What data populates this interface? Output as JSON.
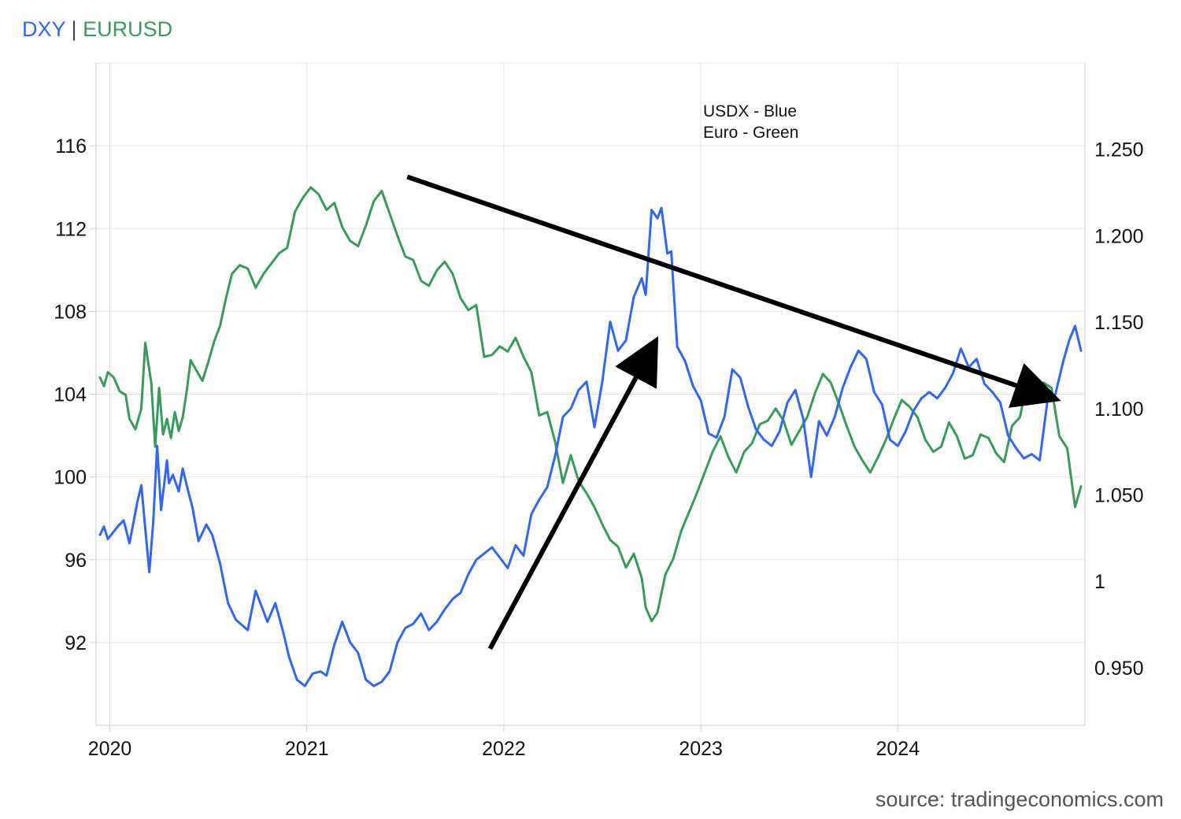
{
  "chart_data": {
    "type": "line",
    "title_parts": [
      {
        "text": "DXY",
        "color": "#3366ee"
      },
      {
        "text": " | ",
        "color": "#444444"
      },
      {
        "text": "EURUSD",
        "color": "#3a9a5b"
      }
    ],
    "source": "source: tradingeconomics.com",
    "grid": true,
    "x_ticks": [
      "2020",
      "2021",
      "2022",
      "2023",
      "2024"
    ],
    "x_range": [
      2019.93,
      2024.95
    ],
    "y_left": {
      "ticks": [
        "116",
        "112",
        "108",
        "104",
        "100",
        "96",
        "92"
      ],
      "range": [
        88,
        120
      ]
    },
    "y_right": {
      "ticks": [
        "1.250",
        "1.200",
        "1.150",
        "1.100",
        "1.050",
        "1",
        "0.950"
      ],
      "range": [
        0.9167,
        1.3
      ]
    },
    "annotation": [
      "USDX - Blue",
      "Euro - Green"
    ],
    "arrows": [
      {
        "from": [
          2021.51,
          114.5
        ],
        "to": [
          2024.76,
          103.9
        ]
      },
      {
        "from": [
          2021.93,
          91.7
        ],
        "to": [
          2022.75,
          106.2
        ]
      }
    ],
    "series": [
      {
        "color": "#3366ee",
        "x": [
          2019.95,
          2019.97,
          2019.99,
          2020.04,
          2020.07,
          2020.1,
          2020.14,
          2020.16,
          2020.2,
          2020.22,
          2020.24,
          2020.26,
          2020.29,
          2020.3,
          2020.32,
          2020.35,
          2020.37,
          2020.39,
          2020.42,
          2020.45,
          2020.49,
          2020.52,
          2020.56,
          2020.6,
          2020.64,
          2020.7,
          2020.74,
          2020.8,
          2020.84,
          2020.88,
          2020.91,
          2020.95,
          2020.99,
          2021.03,
          2021.07,
          2021.1,
          2021.14,
          2021.18,
          2021.22,
          2021.26,
          2021.3,
          2021.34,
          2021.38,
          2021.42,
          2021.46,
          2021.5,
          2021.54,
          2021.58,
          2021.62,
          2021.66,
          2021.7,
          2021.74,
          2021.78,
          2021.82,
          2021.86,
          2021.9,
          2021.94,
          2021.98,
          2022.02,
          2022.06,
          2022.1,
          2022.14,
          2022.18,
          2022.22,
          2022.26,
          2022.3,
          2022.34,
          2022.38,
          2022.42,
          2022.46,
          2022.5,
          2022.54,
          2022.58,
          2022.62,
          2022.66,
          2022.7,
          2022.72,
          2022.75,
          2022.78,
          2022.8,
          2022.83,
          2022.85,
          2022.88,
          2022.92,
          2022.96,
          2023.0,
          2023.04,
          2023.08,
          2023.12,
          2023.16,
          2023.2,
          2023.24,
          2023.28,
          2023.32,
          2023.36,
          2023.4,
          2023.44,
          2023.48,
          2023.52,
          2023.56,
          2023.6,
          2023.64,
          2023.68,
          2023.72,
          2023.76,
          2023.8,
          2023.84,
          2023.88,
          2023.92,
          2023.96,
          2024.0,
          2024.04,
          2024.08,
          2024.12,
          2024.16,
          2024.2,
          2024.24,
          2024.28,
          2024.32,
          2024.36,
          2024.4,
          2024.44,
          2024.48,
          2024.52,
          2024.56,
          2024.6,
          2024.64,
          2024.68,
          2024.72,
          2024.76,
          2024.8,
          2024.84,
          2024.87,
          2024.9,
          2024.93
        ],
        "values": [
          97.2,
          97.6,
          97.0,
          97.6,
          97.9,
          96.8,
          98.8,
          99.6,
          95.4,
          97.8,
          101.5,
          98.4,
          100.8,
          99.7,
          100.1,
          99.3,
          100.4,
          99.6,
          98.5,
          96.9,
          97.7,
          97.2,
          95.8,
          93.9,
          93.1,
          92.6,
          94.5,
          93.0,
          93.9,
          92.5,
          91.3,
          90.2,
          89.9,
          90.5,
          90.6,
          90.4,
          91.9,
          93.0,
          92.0,
          91.5,
          90.2,
          89.9,
          90.1,
          90.6,
          92.0,
          92.7,
          92.9,
          93.4,
          92.6,
          93.0,
          93.6,
          94.1,
          94.4,
          95.3,
          96.0,
          96.3,
          96.6,
          96.1,
          95.6,
          96.7,
          96.2,
          98.2,
          98.9,
          99.5,
          101.0,
          102.9,
          103.3,
          104.2,
          104.6,
          102.4,
          104.6,
          107.5,
          106.1,
          106.6,
          108.7,
          109.6,
          108.8,
          112.9,
          112.5,
          113.0,
          110.8,
          110.9,
          106.3,
          105.6,
          104.4,
          103.7,
          102.1,
          101.9,
          102.9,
          105.2,
          104.8,
          103.4,
          102.3,
          101.8,
          101.5,
          102.2,
          103.6,
          104.2,
          102.8,
          100.0,
          102.7,
          102.0,
          102.9,
          104.3,
          105.3,
          106.1,
          105.7,
          104.1,
          103.5,
          101.8,
          101.5,
          102.2,
          103.2,
          103.8,
          104.1,
          103.8,
          104.3,
          105.0,
          106.2,
          105.3,
          105.7,
          104.5,
          104.1,
          103.6,
          102.0,
          101.4,
          100.9,
          101.1,
          100.8,
          103.7,
          104.0,
          105.6,
          106.6,
          107.3,
          106.1
        ]
      },
      {
        "color": "#3a9a5b",
        "x": [
          2019.95,
          2019.97,
          2019.99,
          2020.02,
          2020.05,
          2020.08,
          2020.1,
          2020.13,
          2020.16,
          2020.18,
          2020.21,
          2020.23,
          2020.25,
          2020.27,
          2020.29,
          2020.31,
          2020.33,
          2020.35,
          2020.37,
          2020.39,
          2020.41,
          2020.44,
          2020.47,
          2020.5,
          2020.53,
          2020.56,
          2020.59,
          2020.62,
          2020.66,
          2020.7,
          2020.74,
          2020.78,
          2020.82,
          2020.86,
          2020.9,
          2020.94,
          2020.98,
          2021.02,
          2021.06,
          2021.1,
          2021.14,
          2021.18,
          2021.22,
          2021.26,
          2021.3,
          2021.34,
          2021.38,
          2021.42,
          2021.46,
          2021.5,
          2021.54,
          2021.58,
          2021.62,
          2021.66,
          2021.7,
          2021.74,
          2021.78,
          2021.82,
          2021.86,
          2021.9,
          2021.94,
          2021.98,
          2022.02,
          2022.06,
          2022.1,
          2022.14,
          2022.18,
          2022.22,
          2022.26,
          2022.3,
          2022.34,
          2022.38,
          2022.42,
          2022.46,
          2022.5,
          2022.54,
          2022.58,
          2022.62,
          2022.66,
          2022.7,
          2022.72,
          2022.75,
          2022.78,
          2022.82,
          2022.86,
          2022.9,
          2022.94,
          2022.98,
          2023.02,
          2023.06,
          2023.1,
          2023.14,
          2023.18,
          2023.22,
          2023.26,
          2023.3,
          2023.34,
          2023.38,
          2023.42,
          2023.46,
          2023.5,
          2023.54,
          2023.58,
          2023.62,
          2023.66,
          2023.7,
          2023.74,
          2023.78,
          2023.82,
          2023.86,
          2023.9,
          2023.94,
          2023.98,
          2024.02,
          2024.06,
          2024.1,
          2024.14,
          2024.18,
          2024.22,
          2024.26,
          2024.3,
          2024.34,
          2024.38,
          2024.42,
          2024.46,
          2024.5,
          2024.54,
          2024.58,
          2024.62,
          2024.66,
          2024.7,
          2024.74,
          2024.78,
          2024.82,
          2024.86,
          2024.88,
          2024.9,
          2024.93
        ],
        "values": [
          1.118,
          1.113,
          1.121,
          1.118,
          1.11,
          1.108,
          1.094,
          1.088,
          1.1,
          1.138,
          1.115,
          1.078,
          1.112,
          1.085,
          1.094,
          1.083,
          1.098,
          1.087,
          1.095,
          1.11,
          1.128,
          1.122,
          1.116,
          1.127,
          1.139,
          1.148,
          1.164,
          1.178,
          1.183,
          1.181,
          1.17,
          1.178,
          1.184,
          1.19,
          1.193,
          1.214,
          1.222,
          1.228,
          1.224,
          1.215,
          1.219,
          1.205,
          1.197,
          1.194,
          1.206,
          1.22,
          1.226,
          1.213,
          1.2,
          1.188,
          1.186,
          1.174,
          1.171,
          1.18,
          1.185,
          1.178,
          1.164,
          1.157,
          1.16,
          1.13,
          1.131,
          1.136,
          1.133,
          1.141,
          1.13,
          1.121,
          1.096,
          1.098,
          1.081,
          1.057,
          1.073,
          1.058,
          1.051,
          1.043,
          1.033,
          1.024,
          1.02,
          1.008,
          1.016,
          1.002,
          0.985,
          0.977,
          0.982,
          1.004,
          1.013,
          1.029,
          1.04,
          1.051,
          1.063,
          1.075,
          1.084,
          1.072,
          1.063,
          1.075,
          1.08,
          1.091,
          1.093,
          1.1,
          1.093,
          1.079,
          1.087,
          1.095,
          1.109,
          1.12,
          1.115,
          1.103,
          1.09,
          1.078,
          1.07,
          1.063,
          1.072,
          1.082,
          1.094,
          1.105,
          1.101,
          1.095,
          1.082,
          1.075,
          1.078,
          1.092,
          1.084,
          1.071,
          1.073,
          1.085,
          1.083,
          1.074,
          1.069,
          1.09,
          1.095,
          1.117,
          1.11,
          1.115,
          1.112,
          1.084,
          1.077,
          1.06,
          1.043,
          1.055
        ]
      }
    ]
  }
}
